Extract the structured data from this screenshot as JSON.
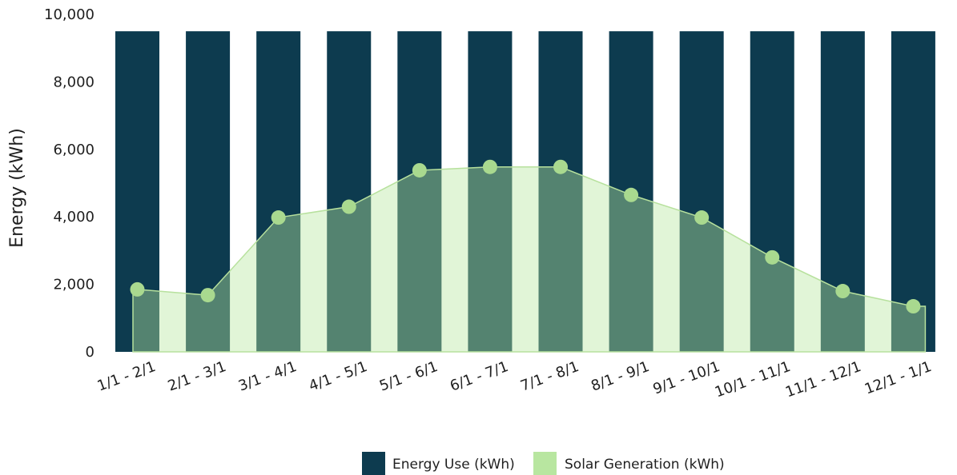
{
  "chart_data": {
    "type": "bar",
    "categories": [
      "1/1 - 2/1",
      "2/1 - 3/1",
      "3/1 - 4/1",
      "4/1 - 5/1",
      "5/1 - 6/1",
      "6/1 - 7/1",
      "7/1 - 8/1",
      "8/1 - 9/1",
      "9/1 - 10/1",
      "10/1 - 11/1",
      "11/1 - 12/1",
      "12/1 - 1/1"
    ],
    "series": [
      {
        "name": "Energy Use (kWh)",
        "type": "bar",
        "color": "#0d3b4f",
        "values": [
          9500,
          9500,
          9500,
          9500,
          9500,
          9500,
          9500,
          9500,
          9500,
          9500,
          9500,
          9500
        ]
      },
      {
        "name": "Solar Generation (kWh)",
        "type": "area",
        "color": "#b8e6a0",
        "marker_color": "#a9d98f",
        "values": [
          1850,
          1680,
          3980,
          4300,
          5380,
          5480,
          5480,
          4650,
          3980,
          2800,
          1800,
          1350
        ]
      }
    ],
    "xlabel": "",
    "ylabel": "Energy (kWh)",
    "ylim": [
      0,
      10000
    ],
    "yticks": [
      "0",
      "2,000",
      "4,000",
      "6,000",
      "8,000",
      "10,000"
    ],
    "grid": false,
    "legend_position": "bottom-center"
  }
}
